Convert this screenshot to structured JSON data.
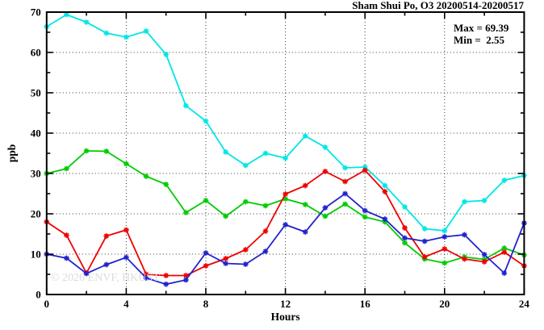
{
  "header": {
    "title": "Sham Shui Po, O3 20200514-20200517"
  },
  "annotations": {
    "max_label": "Max = 69.39",
    "min_label": "Min =  2.55",
    "watermark": "© 2026 ENVF, HKUST"
  },
  "axes": {
    "x_label": "Hours",
    "y_label": "ppb"
  },
  "chart_data": {
    "type": "line",
    "title": "Sham Shui Po, O3 20200514-20200517",
    "xlabel": "Hours",
    "ylabel": "ppb",
    "xlim": [
      0,
      24
    ],
    "ylim": [
      0,
      70
    ],
    "x_major_ticks": [
      0,
      4,
      8,
      12,
      16,
      20,
      24
    ],
    "x_minor_ticks": [
      2,
      6,
      10,
      14,
      18,
      22
    ],
    "y_major_ticks": [
      0,
      10,
      20,
      30,
      40,
      50,
      60,
      70
    ],
    "y_minor_ticks": [
      5,
      15,
      25,
      35,
      45,
      55,
      65
    ],
    "grid": {
      "x_lines": [
        4,
        8,
        12,
        16,
        20
      ],
      "y_lines": [
        10,
        20,
        30,
        40,
        50,
        60
      ]
    },
    "legend_position": "none",
    "stats": {
      "max": 69.39,
      "min": 2.55
    },
    "x": [
      0,
      1,
      2,
      3,
      4,
      5,
      6,
      7,
      8,
      9,
      10,
      11,
      12,
      13,
      14,
      15,
      16,
      17,
      18,
      19,
      20,
      21,
      22,
      23,
      24
    ],
    "series": [
      {
        "name": "cyan-line",
        "color": "#00e6e6",
        "values": [
          66.4,
          69.39,
          67.5,
          64.8,
          63.8,
          65.3,
          59.5,
          46.8,
          43.0,
          35.3,
          32.0,
          35.0,
          33.8,
          39.3,
          36.5,
          31.4,
          31.6,
          27.0,
          21.7,
          16.3,
          15.8,
          23.0,
          23.3,
          28.3,
          29.5
        ]
      },
      {
        "name": "green-line",
        "color": "#00cc00",
        "values": [
          30.0,
          31.2,
          35.6,
          35.5,
          32.4,
          29.3,
          27.3,
          20.3,
          23.3,
          19.4,
          23.0,
          22.0,
          23.7,
          22.3,
          19.4,
          22.4,
          19.2,
          18.0,
          12.8,
          8.8,
          7.8,
          9.3,
          8.7,
          11.5,
          9.8
        ]
      },
      {
        "name": "red-line",
        "color": "#ee0000",
        "values": [
          18.0,
          14.7,
          5.3,
          14.5,
          16.0,
          5.0,
          4.7,
          4.7,
          7.1,
          8.9,
          11.1,
          15.7,
          24.9,
          27.0,
          30.5,
          28.0,
          30.8,
          25.5,
          16.5,
          9.3,
          11.3,
          8.8,
          8.1,
          10.5,
          7.1
        ]
      },
      {
        "name": "blue-line",
        "color": "#2222cc",
        "values": [
          10.0,
          9.0,
          5.2,
          7.4,
          9.2,
          4.1,
          2.55,
          3.6,
          10.3,
          7.7,
          7.5,
          10.7,
          17.3,
          15.5,
          21.5,
          25.0,
          20.8,
          18.7,
          14.0,
          13.2,
          14.3,
          14.8,
          9.9,
          5.3,
          17.7
        ]
      }
    ]
  }
}
